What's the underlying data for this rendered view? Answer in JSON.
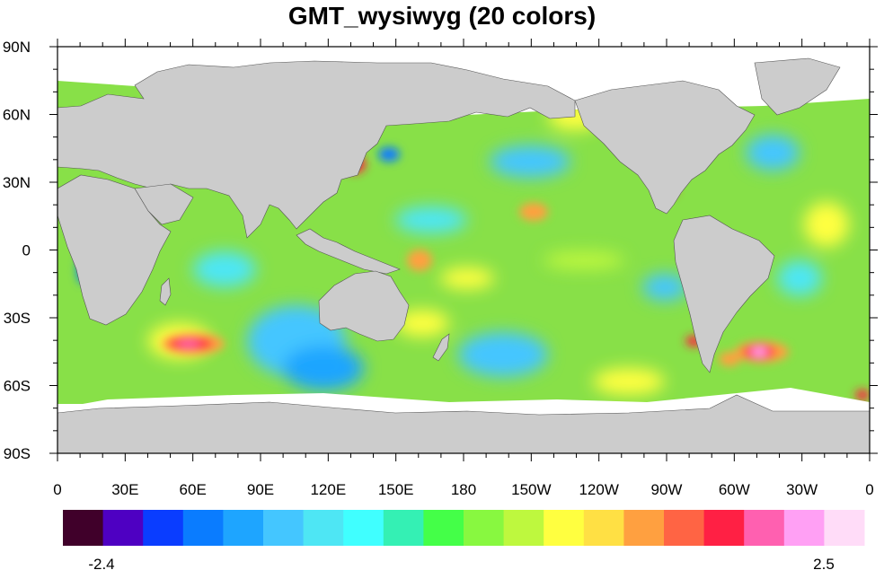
{
  "title": "GMT_wysiwyg (20 colors)",
  "map": {
    "lat_ticks": [
      "90N",
      "60N",
      "30N",
      "0",
      "30S",
      "60S",
      "90S"
    ],
    "lon_ticks": [
      "0",
      "30E",
      "60E",
      "90E",
      "120E",
      "150E",
      "180",
      "150W",
      "120W",
      "90W",
      "60W",
      "30W",
      "0"
    ],
    "land_color": "#cccccc",
    "ocean_background": "#88e048"
  },
  "colorbar": {
    "colors": [
      "#40002a",
      "#4e00c2",
      "#0a3dff",
      "#0a7cff",
      "#1ea5ff",
      "#44c6ff",
      "#4ee6f4",
      "#40ffff",
      "#34f0b4",
      "#44ff48",
      "#88f840",
      "#bef83e",
      "#ffff40",
      "#ffe044",
      "#ffa040",
      "#ff6444",
      "#ff2044",
      "#ff60b0",
      "#ffa0f4",
      "#ffdcf8"
    ],
    "min_label": "-2.4",
    "max_label": "2.5"
  }
}
